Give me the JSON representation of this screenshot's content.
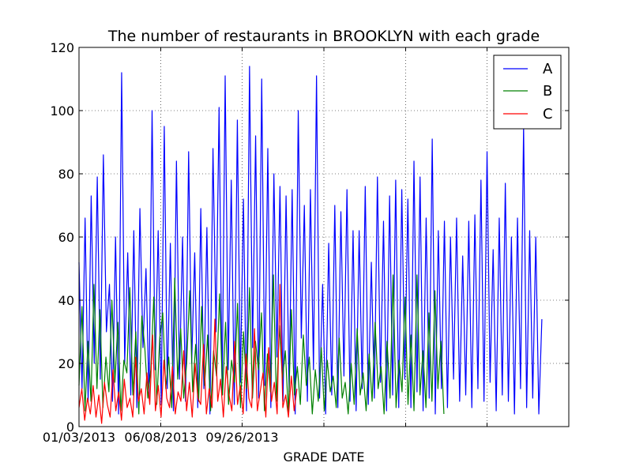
{
  "chart_data": {
    "type": "line",
    "title": "The number of restaurants in BROOKLYN with each grade",
    "xlabel": "GRADE DATE",
    "ylabel": "",
    "ylim": [
      0,
      120
    ],
    "yticks": [
      0,
      20,
      40,
      60,
      80,
      100,
      120
    ],
    "xtick_labels": [
      "01/03/2013",
      "06/08/2013",
      "09/26/2013",
      "",
      "",
      "",
      ""
    ],
    "grid": true,
    "legend": {
      "placement": "top-right"
    },
    "series": [
      {
        "name": "A",
        "color": "#0000ff",
        "values": [
          52,
          12,
          66,
          8,
          73,
          20,
          79,
          15,
          86,
          30,
          45,
          8,
          60,
          4,
          112,
          20,
          55,
          10,
          62,
          6,
          69,
          25,
          50,
          9,
          100,
          18,
          62,
          7,
          95,
          12,
          58,
          5,
          84,
          15,
          60,
          8,
          87,
          20,
          55,
          6,
          69,
          12,
          63,
          4,
          88,
          30,
          101,
          10,
          111,
          18,
          78,
          7,
          97,
          14,
          72,
          5,
          114,
          25,
          92,
          9,
          110,
          13,
          88,
          6,
          80,
          22,
          76,
          8,
          73,
          11,
          75,
          4,
          100,
          28,
          70,
          8,
          75,
          18,
          111,
          9,
          45,
          4,
          58,
          10,
          70,
          6,
          68,
          16,
          75,
          8,
          62,
          5,
          62,
          12,
          76,
          7,
          52,
          9,
          79,
          14,
          65,
          5,
          73,
          10,
          78,
          6,
          75,
          15,
          72,
          6,
          84,
          11,
          79,
          5,
          66,
          9,
          91,
          4,
          62,
          12,
          65,
          6,
          60,
          15,
          66,
          8,
          54,
          10,
          65,
          6,
          67,
          12,
          78,
          8,
          87,
          14,
          56,
          5,
          66,
          10,
          77,
          8,
          60,
          4,
          66,
          12,
          95,
          6,
          62,
          9,
          60,
          4,
          34
        ]
      },
      {
        "name": "B",
        "color": "#008000",
        "values": [
          13,
          38,
          5,
          27,
          8,
          45,
          12,
          37,
          6,
          22,
          11,
          40,
          14,
          33,
          5,
          21,
          17,
          44,
          10,
          30,
          4,
          35,
          25,
          9,
          18,
          41,
          7,
          28,
          36,
          12,
          22,
          6,
          47,
          15,
          31,
          9,
          20,
          43,
          11,
          26,
          8,
          38,
          13,
          29,
          5,
          24,
          16,
          42,
          10,
          33,
          7,
          21,
          14,
          39,
          6,
          30,
          12,
          44,
          9,
          27,
          18,
          36,
          5,
          23,
          11,
          48,
          8,
          32,
          15,
          24,
          4,
          37,
          10,
          19,
          7,
          29,
          13,
          22,
          4,
          18,
          8,
          25,
          5,
          21,
          11,
          16,
          6,
          28,
          9,
          14,
          4,
          20,
          7,
          31,
          10,
          17,
          5,
          23,
          8,
          33,
          12,
          19,
          4,
          27,
          9,
          48,
          6,
          21,
          11,
          41,
          7,
          29,
          5,
          48,
          10,
          24,
          6,
          36,
          8,
          43,
          12,
          27,
          4
        ]
      },
      {
        "name": "C",
        "color": "#ff0000",
        "values": [
          6,
          12,
          2,
          9,
          4,
          13,
          3,
          10,
          1,
          14,
          7,
          3,
          18,
          5,
          11,
          2,
          15,
          6,
          9,
          3,
          22,
          8,
          12,
          4,
          17,
          7,
          29,
          5,
          13,
          3,
          21,
          9,
          6,
          19,
          4,
          11,
          8,
          24,
          5,
          14,
          3,
          20,
          9,
          7,
          26,
          4,
          12,
          6,
          34,
          8,
          15,
          3,
          19,
          10,
          5,
          27,
          7,
          13,
          4,
          23,
          9,
          6,
          31,
          5,
          11,
          17,
          3,
          25,
          8,
          14,
          4,
          45,
          6,
          10,
          3,
          16,
          5,
          12
        ]
      }
    ]
  }
}
